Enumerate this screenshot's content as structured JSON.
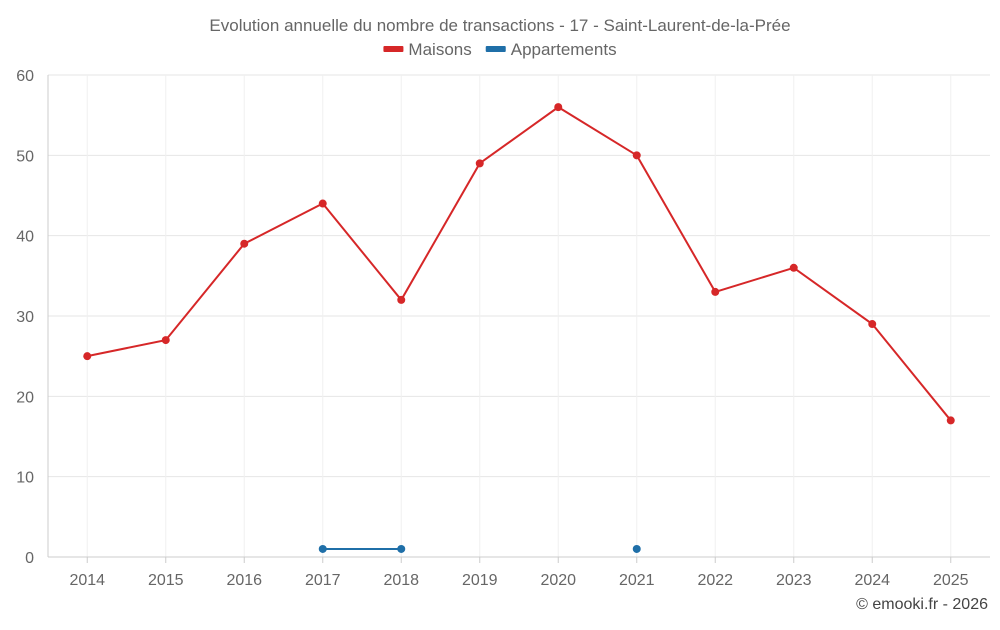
{
  "chart_data": {
    "type": "line",
    "title": "Evolution annuelle du nombre de transactions - 17 - Saint-Laurent-de-la-Prée",
    "xlabel": "",
    "ylabel": "",
    "categories": [
      "2014",
      "2015",
      "2016",
      "2017",
      "2018",
      "2019",
      "2020",
      "2021",
      "2022",
      "2023",
      "2024",
      "2025"
    ],
    "ylim": [
      0,
      60
    ],
    "yticks": [
      0,
      10,
      20,
      30,
      40,
      50,
      60
    ],
    "grid": true,
    "legend_position": "top-center",
    "series": [
      {
        "name": "Maisons",
        "color": "#d62728",
        "values": [
          25,
          27,
          39,
          44,
          32,
          49,
          56,
          50,
          33,
          36,
          29,
          17
        ]
      },
      {
        "name": "Appartements",
        "color": "#1f6fa8",
        "values": [
          null,
          null,
          null,
          1,
          1,
          null,
          null,
          1,
          null,
          null,
          null,
          null
        ]
      }
    ]
  },
  "credit": "© emooki.fr - 2026"
}
